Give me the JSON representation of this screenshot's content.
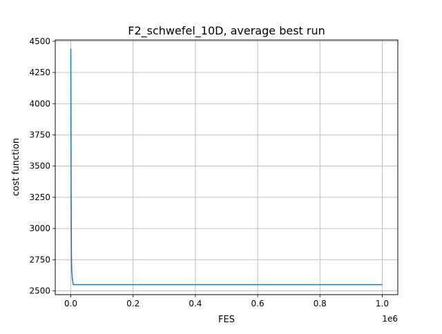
{
  "chart_data": {
    "type": "line",
    "title": "F2_schwefel_10D, average best run",
    "xlabel": "FES",
    "ylabel": "cost function",
    "x_offset_label": "1e6",
    "xlim": [
      -0.05,
      1.05
    ],
    "ylim": [
      2470,
      4510
    ],
    "x_ticks": [
      0.0,
      0.2,
      0.4,
      0.6,
      0.8,
      1.0
    ],
    "x_tick_labels": [
      "0.0",
      "0.2",
      "0.4",
      "0.6",
      "0.8",
      "1.0"
    ],
    "y_ticks": [
      2500,
      2750,
      3000,
      3250,
      3500,
      3750,
      4000,
      4250,
      4500
    ],
    "y_tick_labels": [
      "2500",
      "2750",
      "3000",
      "3250",
      "3500",
      "3750",
      "4000",
      "4250",
      "4500"
    ],
    "grid": true,
    "series": [
      {
        "color": "#1f77b4",
        "x": [
          0.0,
          0.001,
          0.002,
          0.003,
          0.005,
          0.008,
          1.0
        ],
        "y": [
          4440,
          3300,
          2780,
          2660,
          2590,
          2550,
          2550
        ]
      }
    ]
  }
}
